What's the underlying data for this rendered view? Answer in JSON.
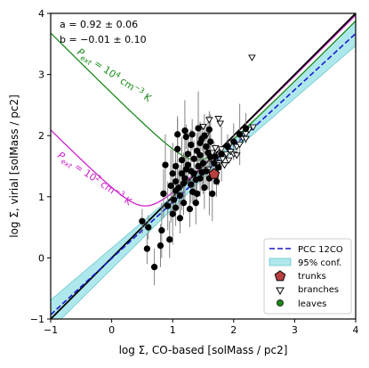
{
  "chart_data": {
    "type": "scatter",
    "title": "",
    "xlabel": "log Σ, CO-based [solMass / pc2]",
    "ylabel": "log Σ, virial [solMass / pc2]",
    "xlim": [
      -1,
      4
    ],
    "ylim": [
      -1,
      4
    ],
    "xticks": [
      -1,
      0,
      1,
      2,
      3,
      4
    ],
    "yticks": [
      -1,
      0,
      1,
      2,
      3,
      4
    ],
    "grid": false,
    "legend_position": "bottom-right",
    "fit_text": [
      "a = 0.92 ± 0.06",
      "b = −0.01 ± 0.10"
    ],
    "fit": {
      "slope": 0.92,
      "intercept": -0.01
    },
    "confidence_band": {
      "at_x": [
        -1,
        1.6,
        4
      ],
      "half_width": [
        0.24,
        0.06,
        0.2
      ]
    },
    "one_to_one": [
      [
        -1,
        -1
      ],
      [
        4,
        4
      ]
    ],
    "pressure_curves": [
      {
        "label": "P_ext = 10^4 cm^-3 K",
        "label_parts": {
          "p": "P",
          "sub": "ext",
          "mid": " = 10",
          "sup1": "4",
          "unit": " cm",
          "sup2": "−3",
          "end": " K"
        },
        "color": "#1a8a1a",
        "min_point": [
          1.4,
          1.6
        ]
      },
      {
        "label": "P_ext = 10^2 cm^-3 K",
        "label_parts": {
          "p": "P",
          "sub": "ext",
          "mid": " = 10",
          "sup1": "2",
          "unit": " cm",
          "sup2": "−3",
          "end": " K"
        },
        "color": "#cc22cc",
        "min_point": [
          0.55,
          0.85
        ]
      }
    ],
    "series": [
      {
        "name": "PCC 12CO",
        "kind": "line",
        "color": "#1a1acc"
      },
      {
        "name": "95% conf.",
        "kind": "band",
        "color": "#aee8ec"
      },
      {
        "name": "trunks",
        "kind": "pentagon",
        "color": "#b84040",
        "points": [
          [
            1.68,
            1.37
          ]
        ]
      },
      {
        "name": "branches",
        "kind": "triangle",
        "points": [
          [
            1.58,
            1.45
          ],
          [
            1.62,
            1.62
          ],
          [
            1.65,
            1.72
          ],
          [
            1.7,
            1.8
          ],
          [
            1.73,
            1.66
          ],
          [
            1.76,
            1.55
          ],
          [
            1.8,
            1.78
          ],
          [
            1.82,
            1.62
          ],
          [
            1.85,
            1.52
          ],
          [
            1.88,
            1.7
          ],
          [
            1.9,
            1.8
          ],
          [
            1.95,
            1.74
          ],
          [
            2.0,
            1.7
          ],
          [
            2.05,
            1.82
          ],
          [
            2.1,
            1.86
          ],
          [
            2.15,
            1.96
          ],
          [
            2.2,
            2.03
          ],
          [
            2.25,
            2.1
          ],
          [
            1.5,
            2.15
          ],
          [
            1.55,
            2.0
          ],
          [
            1.78,
            2.2
          ],
          [
            1.6,
            2.26
          ],
          [
            1.75,
            2.28
          ],
          [
            2.2,
            1.95
          ],
          [
            2.32,
            2.14
          ],
          [
            1.72,
            1.52
          ],
          [
            1.95,
            1.88
          ],
          [
            2.05,
            1.68
          ],
          [
            1.92,
            1.6
          ],
          [
            2.3,
            3.28
          ]
        ]
      },
      {
        "name": "leaves",
        "kind": "circle",
        "err": [
          0.25,
          0.3,
          0.2,
          0.35,
          0.45,
          0.2,
          0.3,
          0.5,
          0.25,
          0.6,
          0.35,
          0.3,
          0.5,
          0.4
        ],
        "points": [
          [
            0.58,
            0.15
          ],
          [
            0.7,
            -0.15
          ],
          [
            0.6,
            0.5
          ],
          [
            0.8,
            0.2
          ],
          [
            0.82,
            0.45
          ],
          [
            0.5,
            0.6
          ],
          [
            0.95,
            0.3
          ],
          [
            1.0,
            0.72
          ],
          [
            1.02,
            0.95
          ],
          [
            0.97,
            1.18
          ],
          [
            1.05,
            1.25
          ],
          [
            1.1,
            1.15
          ],
          [
            1.12,
            1.02
          ],
          [
            1.2,
            1.3
          ],
          [
            1.22,
            1.45
          ],
          [
            1.3,
            1.2
          ],
          [
            1.33,
            1.08
          ],
          [
            1.38,
            0.9
          ],
          [
            1.35,
            1.38
          ],
          [
            1.42,
            1.5
          ],
          [
            1.45,
            1.3
          ],
          [
            1.5,
            1.55
          ],
          [
            1.55,
            1.42
          ],
          [
            1.6,
            1.3
          ],
          [
            1.62,
            1.65
          ],
          [
            1.15,
            1.6
          ],
          [
            1.08,
            1.78
          ],
          [
            1.25,
            1.7
          ],
          [
            1.3,
            1.85
          ],
          [
            1.4,
            1.75
          ],
          [
            1.48,
            1.95
          ],
          [
            1.55,
            1.82
          ],
          [
            1.62,
            1.9
          ],
          [
            1.7,
            1.65
          ],
          [
            1.75,
            1.48
          ],
          [
            1.0,
            1.38
          ],
          [
            1.05,
            1.5
          ],
          [
            1.15,
            1.38
          ],
          [
            1.25,
            1.52
          ],
          [
            1.35,
            1.62
          ],
          [
            1.45,
            1.68
          ],
          [
            0.92,
            0.85
          ],
          [
            1.12,
            0.65
          ],
          [
            1.28,
            0.8
          ],
          [
            1.4,
            1.05
          ],
          [
            1.52,
            1.15
          ],
          [
            1.65,
            1.05
          ],
          [
            1.18,
            0.9
          ],
          [
            1.08,
            2.02
          ],
          [
            1.2,
            2.08
          ],
          [
            1.32,
            2.02
          ],
          [
            1.42,
            2.12
          ],
          [
            1.52,
            2.0
          ],
          [
            1.6,
            2.1
          ],
          [
            0.88,
            1.52
          ],
          [
            0.85,
            1.05
          ],
          [
            1.72,
            1.25
          ],
          [
            1.05,
            0.82
          ],
          [
            1.22,
            1.98
          ],
          [
            1.45,
            1.88
          ],
          [
            1.8,
            1.7
          ],
          [
            1.9,
            1.82
          ],
          [
            2.0,
            1.9
          ],
          [
            2.1,
            2.02
          ],
          [
            2.2,
            2.12
          ],
          [
            1.58,
            1.72
          ],
          [
            1.68,
            1.55
          ],
          [
            1.3,
            1.42
          ],
          [
            1.18,
            1.22
          ],
          [
            1.05,
            1.1
          ],
          [
            1.38,
            1.28
          ],
          [
            1.48,
            1.4
          ]
        ]
      }
    ]
  }
}
